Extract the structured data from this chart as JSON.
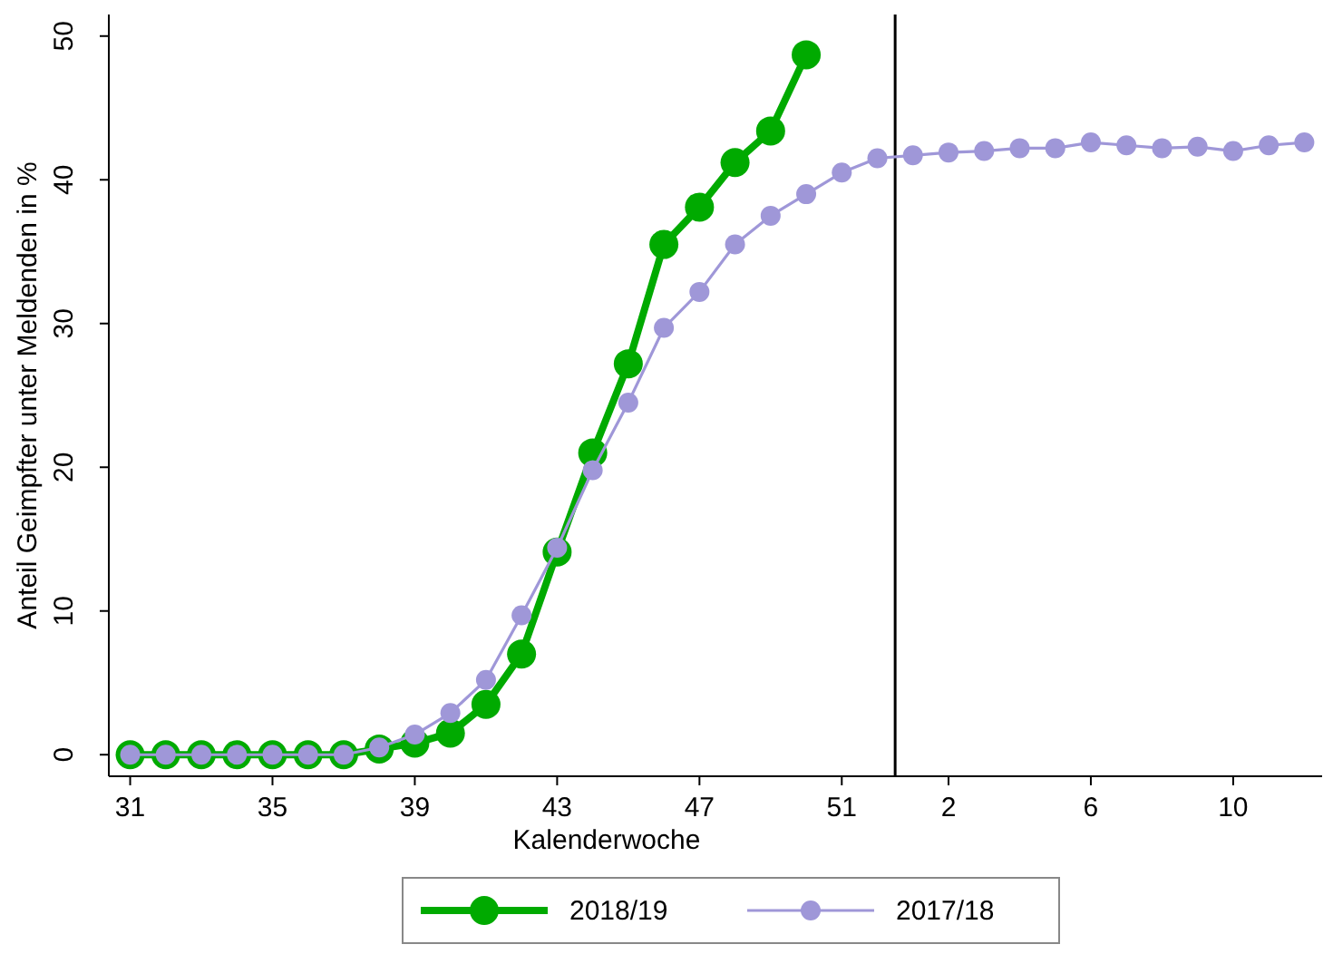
{
  "chart_data": {
    "type": "line",
    "xlabel": "Kalenderwoche",
    "ylabel": "Anteil Geimpfter unter Meldenden in %",
    "categories": [
      "31",
      null,
      null,
      null,
      "35",
      null,
      null,
      null,
      "39",
      null,
      null,
      null,
      "43",
      null,
      null,
      null,
      "47",
      null,
      null,
      null,
      "51",
      null,
      null,
      "2",
      null,
      null,
      null,
      "6",
      null,
      null,
      null,
      "10",
      null,
      null
    ],
    "ylim": [
      -1.5,
      51.5
    ],
    "yticks": [
      0,
      10,
      20,
      30,
      40,
      50
    ],
    "grid": false,
    "legend": "bottom",
    "marker": "circle",
    "line_style": "solid",
    "series": [
      {
        "name": "2018/19",
        "color": "#00aa00",
        "values": [
          0,
          0,
          0,
          0,
          0,
          0,
          0,
          0.4,
          0.8,
          1.5,
          3.5,
          7,
          14.1,
          21,
          27.2,
          35.5,
          38.1,
          41.2,
          43.4,
          48.7,
          null,
          null,
          null,
          null,
          null,
          null,
          null,
          null,
          null,
          null,
          null,
          null,
          null,
          null
        ]
      },
      {
        "name": "2017/18",
        "color": "#9f97d8",
        "values": [
          0,
          0,
          0,
          0,
          0,
          0,
          0,
          0.5,
          1.4,
          2.9,
          5.2,
          9.7,
          14.4,
          19.8,
          24.5,
          29.7,
          32.2,
          35.5,
          37.5,
          39,
          40.5,
          41.5,
          41.7,
          41.9,
          42,
          42.2,
          42.2,
          42.6,
          42.4,
          42.2,
          42.3,
          42,
          42.4,
          42.6
        ]
      }
    ]
  }
}
